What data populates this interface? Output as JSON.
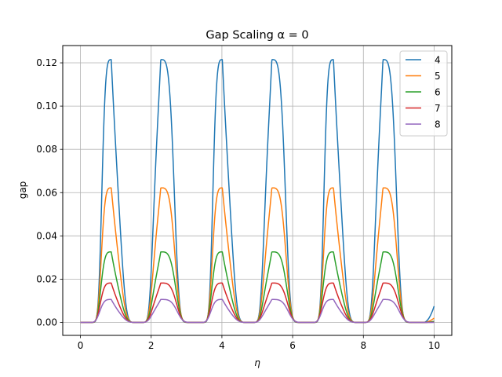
{
  "chart_data": {
    "type": "line",
    "title": "Gap Scaling α =  0",
    "xlabel": "η",
    "ylabel": "gap",
    "xlim": [
      -0.5,
      10.5
    ],
    "ylim": [
      -0.006,
      0.128
    ],
    "xticks": [
      0,
      2,
      4,
      6,
      8,
      10
    ],
    "xtick_labels": [
      "0",
      "2",
      "4",
      "6",
      "8",
      "10"
    ],
    "yticks": [
      0.0,
      0.02,
      0.04,
      0.06,
      0.08,
      0.1,
      0.12
    ],
    "ytick_labels": [
      "0.00",
      "0.02",
      "0.04",
      "0.06",
      "0.08",
      "0.10",
      "0.12"
    ],
    "grid": true,
    "legend_position": "upper-right",
    "peak_eta": [
      0.88,
      2.27,
      4.02,
      5.41,
      7.16,
      8.55
    ],
    "minimum_eta": [
      1.571,
      4.712,
      7.854
    ],
    "series": [
      {
        "name": "4",
        "color": "#1f77b4",
        "peak": 0.1215,
        "end_value": 0.0075
      },
      {
        "name": "5",
        "color": "#ff7f0e",
        "peak": 0.0622,
        "end_value": 0.002
      },
      {
        "name": "6",
        "color": "#2ca02c",
        "peak": 0.0326,
        "end_value": 0.0005
      },
      {
        "name": "7",
        "color": "#d62728",
        "peak": 0.0182,
        "end_value": 0.0001
      },
      {
        "name": "8",
        "color": "#9467bd",
        "peak": 0.0106,
        "end_value": 0.0
      }
    ]
  }
}
